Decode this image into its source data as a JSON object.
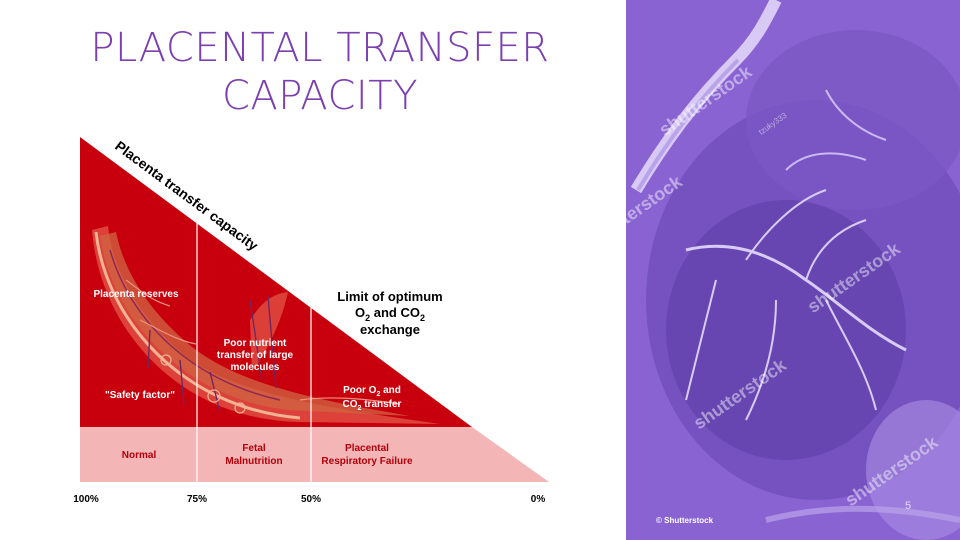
{
  "title": {
    "line1": "PLACENTAL TRANSFER",
    "line2": "CAPACITY"
  },
  "diagram": {
    "diagonal_label": "Placenta transfer capacity",
    "zone_labels": {
      "reserves": "Placenta reserves",
      "safety_factor": "\"Safety factor\"",
      "poor_nutrient": [
        "Poor nutrient",
        "transfer of large",
        "molecules"
      ],
      "limit_optimum": [
        "Limit of optimum",
        "O",
        "2",
        " and CO",
        "2",
        "exchange"
      ],
      "poor_o2": [
        "Poor O",
        "2",
        " and",
        "CO",
        "2",
        " transfer"
      ]
    },
    "band_labels": {
      "normal": "Normal",
      "fetal_malnutrition": [
        "Fetal",
        "Malnutrition"
      ],
      "placental_respiratory_failure": [
        "Placental",
        "Respiratory Failure"
      ]
    },
    "axis_ticks": [
      "100%",
      "75%",
      "50%",
      "0%"
    ]
  },
  "photo": {
    "watermark": "shutterstock",
    "credit": "© Shutterstock",
    "small_tag": "tzuky333"
  },
  "page_number": "5",
  "colors": {
    "title": "#7b3fb0",
    "triangle_dark": "#c8000d",
    "triangle_light": "#f3b5b5",
    "photo_tint": "#8a63d2"
  }
}
